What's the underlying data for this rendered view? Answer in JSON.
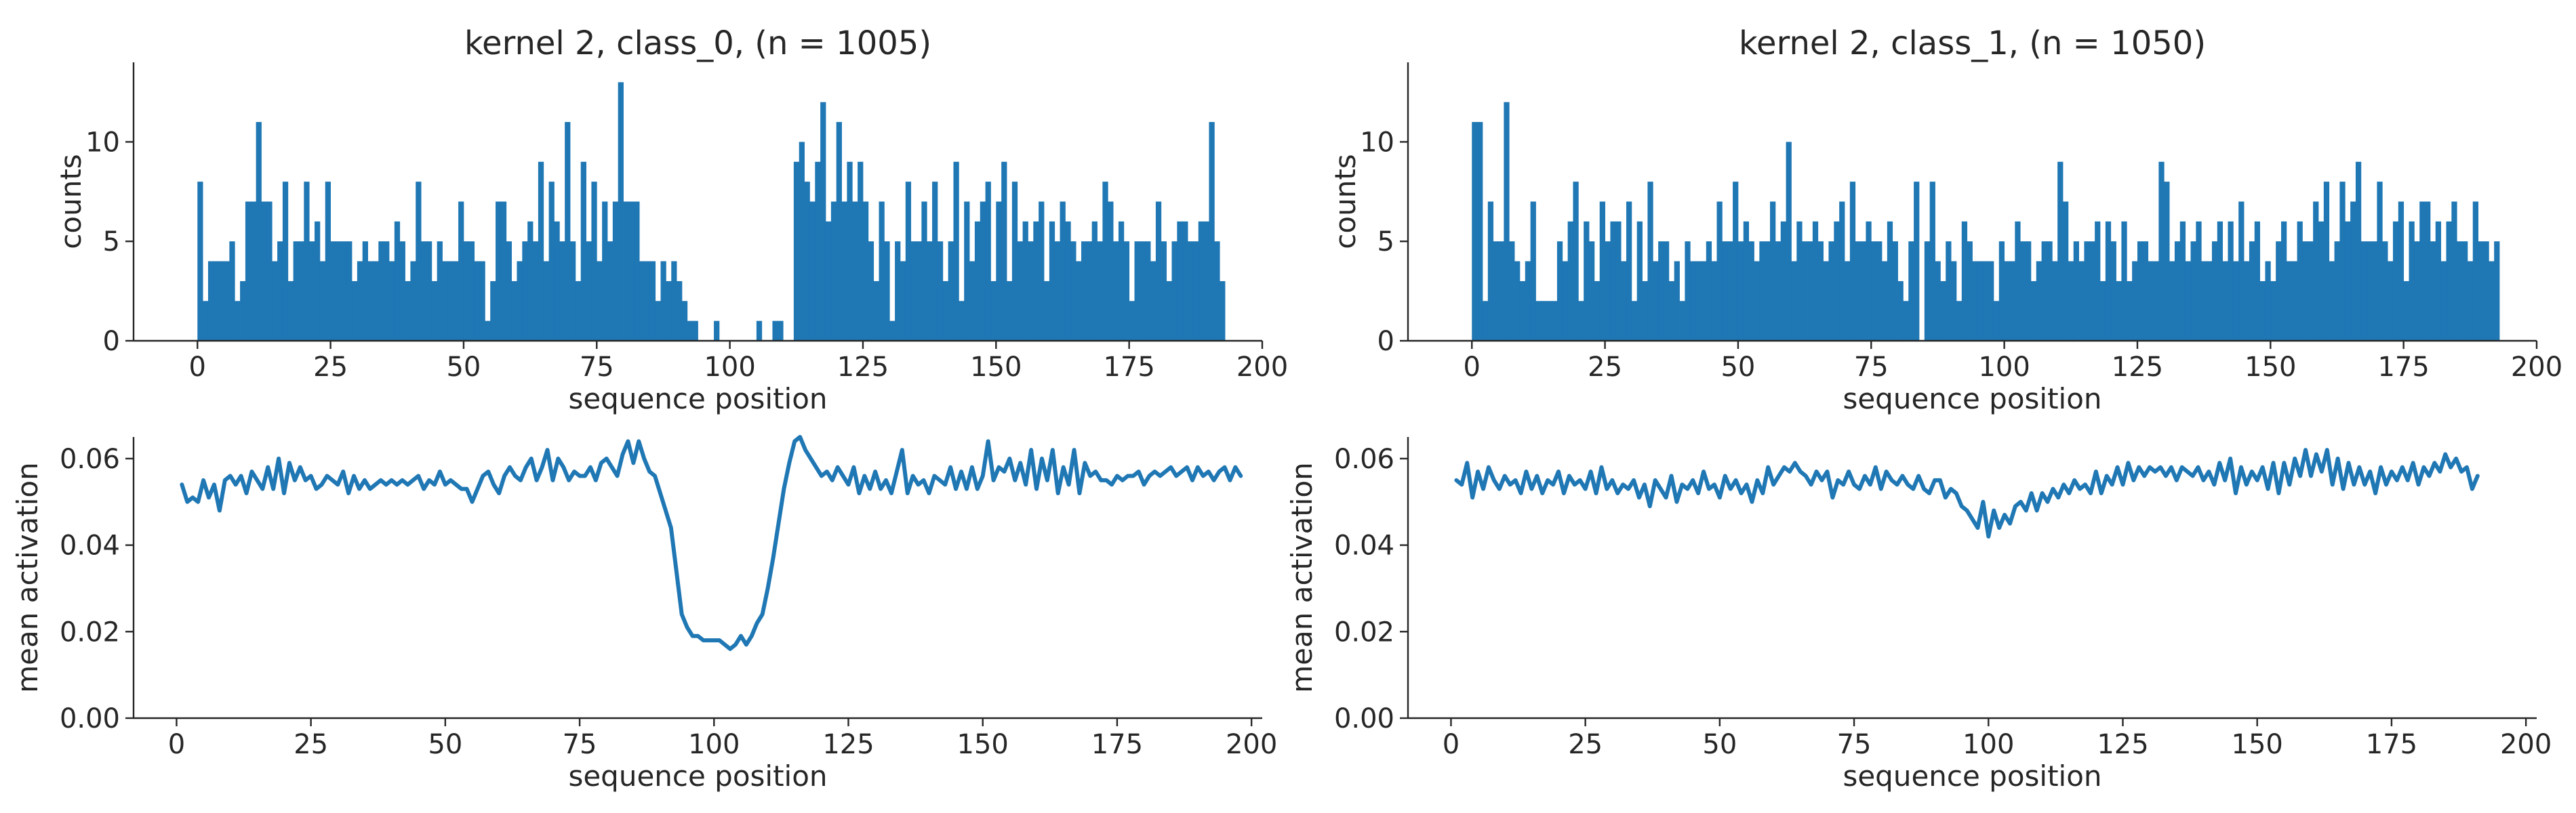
{
  "color_series": "#1f77b4",
  "chart_data": [
    {
      "type": "bar",
      "panel": "top-left",
      "title": "kernel 2, class_0, (n = 1005)",
      "xlabel": "sequence position",
      "ylabel": "counts",
      "xlim": [
        -12,
        200
      ],
      "ylim": [
        0,
        14
      ],
      "xticks": [
        0,
        25,
        50,
        75,
        100,
        125,
        150,
        175,
        200
      ],
      "yticks": [
        0,
        5,
        10
      ],
      "x_start": 0,
      "values": [
        8,
        2,
        4,
        4,
        4,
        4,
        5,
        2,
        3,
        7,
        7,
        11,
        7,
        7,
        4,
        5,
        8,
        3,
        5,
        5,
        8,
        5,
        6,
        4,
        8,
        5,
        5,
        5,
        5,
        3,
        4,
        5,
        4,
        4,
        5,
        5,
        4,
        6,
        5,
        3,
        4,
        8,
        5,
        5,
        3,
        5,
        4,
        4,
        4,
        7,
        5,
        5,
        4,
        4,
        1,
        3,
        7,
        7,
        5,
        3,
        4,
        5,
        6,
        5,
        9,
        4,
        8,
        6,
        5,
        11,
        5,
        3,
        9,
        5,
        8,
        4,
        7,
        5,
        7,
        13,
        7,
        7,
        7,
        4,
        4,
        4,
        2,
        4,
        3,
        4,
        3,
        2,
        1,
        1,
        0,
        0,
        0,
        1,
        0,
        0,
        0,
        0,
        0,
        0,
        0,
        1,
        0,
        0,
        1,
        1,
        0,
        0,
        9,
        10,
        8,
        7,
        9,
        12,
        6,
        7,
        11,
        7,
        9,
        7,
        9,
        7,
        5,
        3,
        7,
        5,
        1,
        5,
        4,
        8,
        5,
        5,
        7,
        5,
        8,
        5,
        3,
        5,
        9,
        2,
        7,
        4,
        6,
        7,
        8,
        3,
        7,
        9,
        3,
        8,
        5,
        6,
        5,
        6,
        7,
        3,
        6,
        5,
        7,
        6,
        5,
        4,
        5,
        5,
        6,
        5,
        8,
        7,
        5,
        6,
        5,
        2,
        5,
        5,
        5,
        4,
        7,
        5,
        3,
        5,
        6,
        6,
        5,
        5,
        6,
        6,
        11,
        5,
        3
      ]
    },
    {
      "type": "line",
      "panel": "bottom-left",
      "title": "",
      "xlabel": "sequence position",
      "ylabel": "mean activation",
      "xlim": [
        -8,
        202
      ],
      "ylim": [
        0,
        0.065
      ],
      "xticks": [
        0,
        25,
        50,
        75,
        100,
        125,
        150,
        175,
        200
      ],
      "yticks": [
        0.0,
        0.02,
        0.04,
        0.06
      ],
      "ytick_labels": [
        "0.00",
        "0.02",
        "0.04",
        "0.06"
      ],
      "x_start": 1,
      "values": [
        0.054,
        0.05,
        0.051,
        0.05,
        0.055,
        0.051,
        0.054,
        0.048,
        0.055,
        0.056,
        0.054,
        0.056,
        0.052,
        0.057,
        0.055,
        0.053,
        0.058,
        0.053,
        0.06,
        0.052,
        0.059,
        0.055,
        0.058,
        0.055,
        0.056,
        0.053,
        0.054,
        0.056,
        0.055,
        0.054,
        0.057,
        0.052,
        0.056,
        0.053,
        0.055,
        0.053,
        0.054,
        0.055,
        0.054,
        0.055,
        0.054,
        0.055,
        0.054,
        0.055,
        0.056,
        0.053,
        0.055,
        0.054,
        0.057,
        0.054,
        0.055,
        0.054,
        0.053,
        0.053,
        0.05,
        0.053,
        0.056,
        0.057,
        0.054,
        0.052,
        0.056,
        0.058,
        0.056,
        0.055,
        0.058,
        0.06,
        0.055,
        0.058,
        0.062,
        0.055,
        0.06,
        0.058,
        0.055,
        0.057,
        0.056,
        0.056,
        0.058,
        0.055,
        0.059,
        0.06,
        0.058,
        0.056,
        0.061,
        0.064,
        0.059,
        0.064,
        0.06,
        0.057,
        0.056,
        0.052,
        0.048,
        0.044,
        0.034,
        0.024,
        0.021,
        0.019,
        0.019,
        0.018,
        0.018,
        0.018,
        0.018,
        0.017,
        0.016,
        0.017,
        0.019,
        0.017,
        0.019,
        0.022,
        0.024,
        0.03,
        0.037,
        0.045,
        0.053,
        0.059,
        0.064,
        0.065,
        0.062,
        0.06,
        0.058,
        0.056,
        0.057,
        0.055,
        0.058,
        0.056,
        0.054,
        0.058,
        0.052,
        0.056,
        0.053,
        0.057,
        0.053,
        0.055,
        0.052,
        0.057,
        0.062,
        0.052,
        0.056,
        0.054,
        0.055,
        0.052,
        0.056,
        0.055,
        0.054,
        0.058,
        0.053,
        0.057,
        0.053,
        0.058,
        0.053,
        0.056,
        0.064,
        0.055,
        0.058,
        0.057,
        0.06,
        0.055,
        0.059,
        0.054,
        0.062,
        0.053,
        0.06,
        0.055,
        0.062,
        0.052,
        0.058,
        0.054,
        0.062,
        0.052,
        0.059,
        0.056,
        0.057,
        0.055,
        0.055,
        0.054,
        0.056,
        0.055,
        0.056,
        0.056,
        0.057,
        0.054,
        0.056,
        0.057,
        0.056,
        0.057,
        0.058,
        0.056,
        0.057,
        0.058,
        0.055,
        0.058,
        0.056,
        0.057,
        0.055,
        0.057,
        0.058,
        0.055,
        0.058,
        0.056
      ]
    },
    {
      "type": "bar",
      "panel": "top-right",
      "title": "kernel 2, class_1, (n = 1050)",
      "xlabel": "sequence position",
      "ylabel": "counts",
      "xlim": [
        -12,
        200
      ],
      "ylim": [
        0,
        14
      ],
      "xticks": [
        0,
        25,
        50,
        75,
        100,
        125,
        150,
        175,
        200
      ],
      "yticks": [
        0,
        5,
        10
      ],
      "x_start": 0,
      "values": [
        11,
        11,
        2,
        7,
        5,
        5,
        12,
        5,
        4,
        3,
        4,
        7,
        2,
        2,
        2,
        2,
        5,
        4,
        6,
        8,
        2,
        6,
        5,
        3,
        7,
        5,
        6,
        6,
        4,
        7,
        2,
        6,
        3,
        8,
        4,
        5,
        5,
        3,
        4,
        2,
        5,
        4,
        4,
        4,
        5,
        4,
        7,
        5,
        5,
        8,
        5,
        6,
        5,
        4,
        5,
        5,
        7,
        5,
        6,
        10,
        4,
        6,
        5,
        5,
        6,
        5,
        4,
        5,
        6,
        7,
        4,
        8,
        5,
        5,
        6,
        5,
        5,
        4,
        6,
        5,
        3,
        2,
        5,
        8,
        0,
        5,
        8,
        4,
        3,
        5,
        4,
        2,
        6,
        5,
        4,
        4,
        4,
        4,
        2,
        5,
        4,
        4,
        6,
        5,
        5,
        3,
        4,
        5,
        5,
        4,
        9,
        7,
        4,
        5,
        4,
        5,
        5,
        6,
        3,
        6,
        5,
        3,
        6,
        3,
        4,
        5,
        5,
        4,
        4,
        9,
        8,
        4,
        5,
        6,
        4,
        5,
        6,
        4,
        4,
        5,
        6,
        4,
        6,
        4,
        7,
        4,
        5,
        6,
        3,
        4,
        3,
        5,
        6,
        4,
        4,
        6,
        5,
        5,
        7,
        6,
        8,
        4,
        5,
        8,
        6,
        7,
        9,
        5,
        5,
        5,
        8,
        5,
        4,
        6,
        7,
        3,
        6,
        5,
        7,
        7,
        5,
        6,
        4,
        6,
        7,
        5,
        5,
        4,
        7,
        5,
        5,
        4,
        5
      ]
    },
    {
      "type": "line",
      "panel": "bottom-right",
      "title": "",
      "xlabel": "sequence position",
      "ylabel": "mean activation",
      "xlim": [
        -8,
        202
      ],
      "ylim": [
        0,
        0.065
      ],
      "xticks": [
        0,
        25,
        50,
        75,
        100,
        125,
        150,
        175,
        200
      ],
      "yticks": [
        0.0,
        0.02,
        0.04,
        0.06
      ],
      "ytick_labels": [
        "0.00",
        "0.02",
        "0.04",
        "0.06"
      ],
      "x_start": 1,
      "values": [
        0.055,
        0.054,
        0.059,
        0.051,
        0.057,
        0.053,
        0.058,
        0.055,
        0.053,
        0.056,
        0.054,
        0.055,
        0.052,
        0.057,
        0.053,
        0.056,
        0.052,
        0.055,
        0.054,
        0.057,
        0.052,
        0.056,
        0.054,
        0.055,
        0.053,
        0.057,
        0.052,
        0.058,
        0.053,
        0.055,
        0.052,
        0.054,
        0.053,
        0.055,
        0.051,
        0.054,
        0.049,
        0.055,
        0.053,
        0.051,
        0.056,
        0.05,
        0.054,
        0.053,
        0.055,
        0.052,
        0.057,
        0.053,
        0.054,
        0.051,
        0.056,
        0.053,
        0.055,
        0.052,
        0.054,
        0.05,
        0.055,
        0.052,
        0.058,
        0.054,
        0.056,
        0.058,
        0.057,
        0.059,
        0.057,
        0.056,
        0.054,
        0.057,
        0.055,
        0.057,
        0.051,
        0.055,
        0.054,
        0.057,
        0.054,
        0.053,
        0.056,
        0.054,
        0.058,
        0.053,
        0.057,
        0.055,
        0.054,
        0.056,
        0.054,
        0.053,
        0.056,
        0.053,
        0.052,
        0.055,
        0.055,
        0.051,
        0.053,
        0.052,
        0.049,
        0.048,
        0.046,
        0.044,
        0.05,
        0.042,
        0.048,
        0.044,
        0.047,
        0.045,
        0.049,
        0.05,
        0.048,
        0.052,
        0.048,
        0.052,
        0.05,
        0.053,
        0.051,
        0.054,
        0.052,
        0.055,
        0.053,
        0.054,
        0.052,
        0.057,
        0.052,
        0.056,
        0.054,
        0.058,
        0.054,
        0.059,
        0.055,
        0.058,
        0.056,
        0.058,
        0.057,
        0.058,
        0.056,
        0.058,
        0.055,
        0.058,
        0.057,
        0.056,
        0.058,
        0.055,
        0.057,
        0.054,
        0.059,
        0.055,
        0.06,
        0.052,
        0.058,
        0.054,
        0.057,
        0.055,
        0.058,
        0.053,
        0.059,
        0.052,
        0.059,
        0.054,
        0.06,
        0.056,
        0.062,
        0.056,
        0.061,
        0.057,
        0.062,
        0.054,
        0.06,
        0.053,
        0.059,
        0.054,
        0.058,
        0.054,
        0.057,
        0.052,
        0.058,
        0.054,
        0.057,
        0.055,
        0.058,
        0.055,
        0.059,
        0.054,
        0.058,
        0.056,
        0.059,
        0.057,
        0.061,
        0.058,
        0.06,
        0.057,
        0.058,
        0.053,
        0.056
      ]
    }
  ]
}
